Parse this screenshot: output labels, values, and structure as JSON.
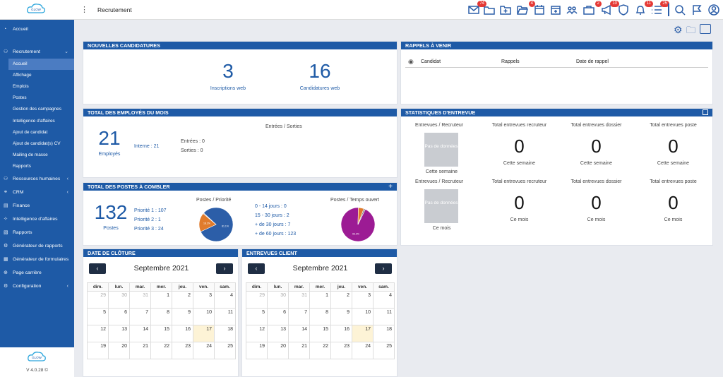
{
  "app": {
    "logo_text": "GLOW",
    "title": "Recrutement",
    "version": "V 4.0.28 ©"
  },
  "topbar": {
    "badges": {
      "mail": "74",
      "folder_open": "4",
      "calendar_add": "",
      "briefcase": "2",
      "megaphone": "10",
      "bell": "11",
      "list": "25"
    },
    "icons": [
      "mail-icon",
      "folders-icon",
      "folder-plus-icon",
      "folder-open-icon",
      "calendar-icon",
      "calendar-add-icon",
      "users-icon",
      "briefcase-icon",
      "megaphone-icon",
      "shield-icon",
      "bell-icon",
      "list-icon",
      "search-icon",
      "flag-icon",
      "user-icon"
    ]
  },
  "sidebar": {
    "top": {
      "label": "Accueil",
      "icon": "dashboard-icon"
    },
    "recrutement": {
      "label": "Recrutement",
      "icon": "users-icon",
      "items": [
        "Accueil",
        "Affichage",
        "Emplois",
        "Postes",
        "Gestion des campagnes",
        "Intelligence d'affaires",
        "Ajout de candidat",
        "Ajout de candidat(s) CV",
        "Mailing de masse",
        "Rapports"
      ]
    },
    "sections": [
      {
        "label": "Ressources humaines",
        "icon": "people-icon",
        "chev": true
      },
      {
        "label": "CRM",
        "icon": "handshake-icon",
        "chev": true
      },
      {
        "label": "Finance",
        "icon": "finance-icon",
        "chev": false
      },
      {
        "label": "Intelligence d'affaires",
        "icon": "lightbulb-icon",
        "chev": false
      },
      {
        "label": "Rapports",
        "icon": "report-icon",
        "chev": false
      },
      {
        "label": "Générateur de rapports",
        "icon": "gears-icon",
        "chev": false
      },
      {
        "label": "Générateur de formulaires",
        "icon": "form-icon",
        "chev": false
      },
      {
        "label": "Page carrière",
        "icon": "globe-icon",
        "chev": false
      },
      {
        "label": "Configuration",
        "icon": "config-icon",
        "chev": true
      }
    ]
  },
  "candidatures": {
    "title": "NOUVELLES CANDIDATURES",
    "web": {
      "value": "3",
      "label": "Inscriptions web"
    },
    "cands": {
      "value": "16",
      "label": "Candidatures web"
    }
  },
  "rappels": {
    "title": "RAPPELS À VENIR",
    "cols": [
      "Candidat",
      "Rappels",
      "Date de rappel"
    ]
  },
  "employes": {
    "title": "TOTAL DES EMPLOYÉS DU MOIS",
    "value": "21",
    "label": "Employés",
    "subtitle": "Entrées / Sorties",
    "interne": "Interne : 21",
    "entrees": "Entrées : 0",
    "sorties": "Sorties : 0"
  },
  "stats": {
    "title": "STATISTIQUES D'ENTREVUE",
    "nodata": "Pas de données",
    "rows": [
      {
        "left_label": "Entrevues / Recruteur",
        "period": "Cette semaine",
        "cols": [
          {
            "title": "Total entrevues recruteur",
            "value": "0"
          },
          {
            "title": "Total entrevues dossier",
            "value": "0"
          },
          {
            "title": "Total entrevues poste",
            "value": "0"
          }
        ]
      },
      {
        "left_label": "Entrevues / Recruteur",
        "period": "Ce mois",
        "cols": [
          {
            "title": "Total entrevues recruteur",
            "value": "0"
          },
          {
            "title": "Total entrevues dossier",
            "value": "0"
          },
          {
            "title": "Total entrevues poste",
            "value": "0"
          }
        ]
      }
    ]
  },
  "postes": {
    "title": "TOTAL DES POSTES À COMBLER",
    "value": "132",
    "label": "Postes",
    "prio": [
      "Priorité 1 : 107",
      "Priorité 2 : 1",
      "Priorité 3 : 24"
    ],
    "pie1_title": "Postes / Priorité",
    "pie2_title": "Postes / Temps ouvert",
    "delais": [
      "0 - 14 jours : 0",
      "15 - 30 jours : 2",
      "+ de 30 jours : 7",
      "+ de 60 jours : 123"
    ],
    "pie1": [
      {
        "label": "81.1%",
        "value": 81.1,
        "color": "#2c5ea8"
      },
      {
        "label": "18.2%",
        "value": 18.2,
        "color": "#e07b2c"
      },
      {
        "label": "",
        "value": 0.7,
        "color": "#888"
      }
    ],
    "pie2": [
      {
        "label": "93.2%",
        "value": 93.2,
        "color": "#9c1b94"
      },
      {
        "label": "",
        "value": 5.3,
        "color": "#e07b2c"
      },
      {
        "label": "",
        "value": 1.5,
        "color": "#888"
      }
    ]
  },
  "calendars": [
    {
      "title": "DATE DE CLÔTURE",
      "month": "Septembre 2021"
    },
    {
      "title": "ENTREVUES CLIENT",
      "month": "Septembre 2021"
    }
  ],
  "cal": {
    "days": [
      "dim.",
      "lun.",
      "mar.",
      "mer.",
      "jeu.",
      "ven.",
      "sam."
    ],
    "weeks": [
      [
        "29",
        "30",
        "31",
        "1",
        "2",
        "3",
        "4"
      ],
      [
        "5",
        "6",
        "7",
        "8",
        "9",
        "10",
        "11"
      ],
      [
        "12",
        "13",
        "14",
        "15",
        "16",
        "17",
        "18"
      ],
      [
        "19",
        "20",
        "21",
        "22",
        "23",
        "24",
        "25"
      ]
    ]
  },
  "colors": {
    "primary": "#1e5aa6",
    "badge": "#e53935",
    "dark_btn": "#1f2e44"
  }
}
